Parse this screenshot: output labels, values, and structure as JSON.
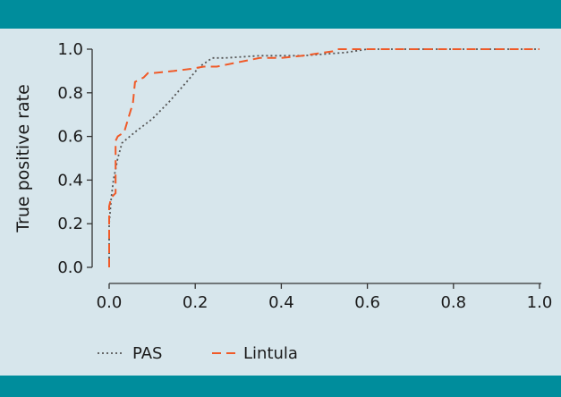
{
  "colors": {
    "band": "#008d9c",
    "background": "#d7e6ec",
    "axis": "#333333",
    "pas": "#555555",
    "lintula": "#f05a28"
  },
  "chart_data": {
    "type": "line",
    "xlabel": "",
    "ylabel": "True positive rate",
    "xlim": [
      0,
      1
    ],
    "ylim": [
      0,
      1
    ],
    "xticks": [
      0.0,
      0.2,
      0.4,
      0.6,
      0.8,
      1.0
    ],
    "xtick_labels": [
      "0.0",
      "0.2",
      "0.4",
      "0.6",
      "0.8",
      "1.0"
    ],
    "yticks": [
      0.0,
      0.2,
      0.4,
      0.6,
      0.8,
      1.0
    ],
    "ytick_labels": [
      "0.0",
      "0.2",
      "0.4",
      "0.6",
      "0.8",
      "1.0"
    ],
    "grid": false,
    "legend_position": "bottom-left",
    "series": [
      {
        "name": "PAS",
        "style": "dotted",
        "color": "#555555",
        "x": [
          0,
          0,
          0.005,
          0.01,
          0.02,
          0.03,
          0.06,
          0.1,
          0.14,
          0.18,
          0.21,
          0.24,
          0.27,
          0.35,
          0.45,
          0.55,
          0.6,
          1.0
        ],
        "y": [
          0,
          0.2,
          0.32,
          0.4,
          0.5,
          0.57,
          0.62,
          0.68,
          0.76,
          0.85,
          0.92,
          0.96,
          0.96,
          0.97,
          0.97,
          0.985,
          1.0,
          1.0
        ]
      },
      {
        "name": "Lintula",
        "style": "dashed",
        "color": "#f05a28",
        "x": [
          0,
          0,
          0.005,
          0.015,
          0.015,
          0.02,
          0.035,
          0.05,
          0.055,
          0.06,
          0.08,
          0.09,
          0.1,
          0.15,
          0.19,
          0.22,
          0.25,
          0.3,
          0.35,
          0.37,
          0.4,
          0.45,
          0.5,
          0.52,
          0.53,
          0.55,
          0.6,
          1.0
        ],
        "y": [
          0,
          0.28,
          0.32,
          0.34,
          0.58,
          0.6,
          0.62,
          0.72,
          0.75,
          0.85,
          0.87,
          0.89,
          0.89,
          0.9,
          0.91,
          0.92,
          0.92,
          0.94,
          0.96,
          0.96,
          0.96,
          0.97,
          0.985,
          0.99,
          1.0,
          1.0,
          1.0,
          1.0
        ]
      }
    ]
  }
}
